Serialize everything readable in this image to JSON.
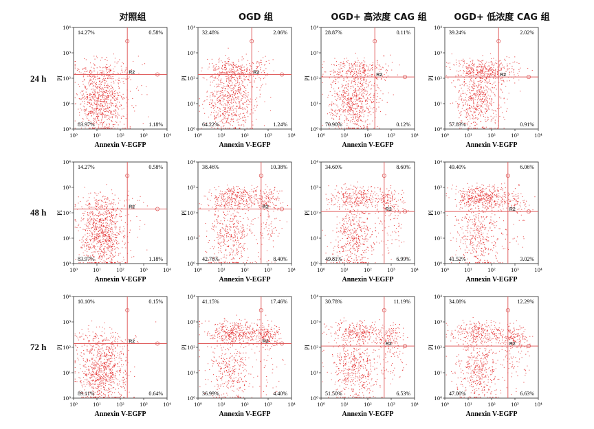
{
  "columns": [
    "对照组",
    "OGD 组",
    "OGD+ 高浓度 CAG 组",
    "OGD+ 低浓度 CAG 组"
  ],
  "rows": [
    "24 h",
    "48 h",
    "72 h"
  ],
  "colors": {
    "dots": "#e11a1a",
    "gate": "#e06060",
    "axis": "#222222"
  },
  "chart_data": {
    "type": "scatter",
    "xlabel": "Annexin V-EGFP",
    "ylabel": "PI",
    "gate_label": "R2",
    "x_scale": "log",
    "y_scale": "log",
    "xlim": [
      1,
      10000
    ],
    "ylim": [
      1,
      10000
    ],
    "tick_labels": [
      "10⁰",
      "10¹",
      "10²",
      "10³",
      "10⁴"
    ],
    "panels": [
      {
        "row": "24 h",
        "group": "对照组",
        "quadrants": {
          "upper_left": "14.27%",
          "upper_right": "0.58%",
          "lower_left": "83.97%",
          "lower_right": "1.18%"
        }
      },
      {
        "row": "24 h",
        "group": "OGD 组",
        "quadrants": {
          "upper_left": "32.48%",
          "upper_right": "2.06%",
          "lower_left": "64.22%",
          "lower_right": "1.24%"
        }
      },
      {
        "row": "24 h",
        "group": "OGD+ 高浓度 CAG 组",
        "quadrants": {
          "upper_left": "28.87%",
          "upper_right": "0.11%",
          "lower_left": "70.90%",
          "lower_right": "0.12%"
        }
      },
      {
        "row": "24 h",
        "group": "OGD+ 低浓度 CAG 组",
        "quadrants": {
          "upper_left": "39.24%",
          "upper_right": "2.02%",
          "lower_left": "57.83%",
          "lower_right": "0.91%"
        }
      },
      {
        "row": "48 h",
        "group": "对照组",
        "quadrants": {
          "upper_left": "14.27%",
          "upper_right": "0.58%",
          "lower_left": "83.97%",
          "lower_right": "1.18%"
        }
      },
      {
        "row": "48 h",
        "group": "OGD 组",
        "quadrants": {
          "upper_left": "38.46%",
          "upper_right": "10.38%",
          "lower_left": "42.76%",
          "lower_right": "8.40%"
        }
      },
      {
        "row": "48 h",
        "group": "OGD+ 高浓度 CAG 组",
        "quadrants": {
          "upper_left": "34.60%",
          "upper_right": "8.60%",
          "lower_left": "49.81%",
          "lower_right": "6.99%"
        }
      },
      {
        "row": "48 h",
        "group": "OGD+ 低浓度 CAG 组",
        "quadrants": {
          "upper_left": "49.40%",
          "upper_right": "6.06%",
          "lower_left": "41.52%",
          "lower_right": "3.02%"
        }
      },
      {
        "row": "72 h",
        "group": "对照组",
        "quadrants": {
          "upper_left": "10.10%",
          "upper_right": "0.15%",
          "lower_left": "89.11%",
          "lower_right": "0.64%"
        }
      },
      {
        "row": "72 h",
        "group": "OGD 组",
        "quadrants": {
          "upper_left": "41.15%",
          "upper_right": "17.46%",
          "lower_left": "36.99%",
          "lower_right": "4.40%"
        }
      },
      {
        "row": "72 h",
        "group": "OGD+ 高浓度 CAG 组",
        "quadrants": {
          "upper_left": "30.78%",
          "upper_right": "11.19%",
          "lower_left": "51.50%",
          "lower_right": "6.53%"
        }
      },
      {
        "row": "72 h",
        "group": "OGD+ 低浓度 CAG 组",
        "quadrants": {
          "upper_left": "34.08%",
          "upper_right": "12.29%",
          "lower_left": "47.00%",
          "lower_right": "6.63%"
        }
      }
    ]
  }
}
